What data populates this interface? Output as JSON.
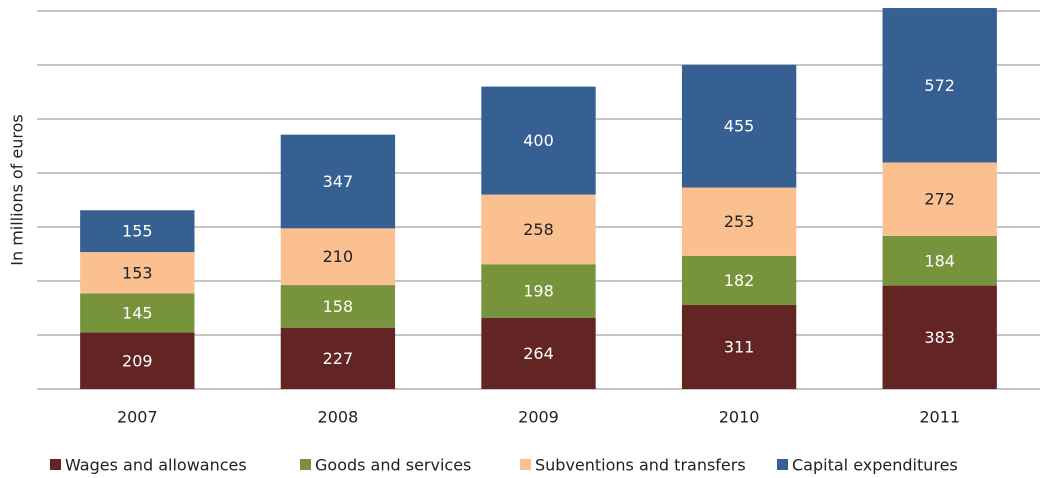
{
  "chart_data": {
    "type": "stacked_bar",
    "y_label": "In millions of euros",
    "categories": [
      "2007",
      "2008",
      "2009",
      "2010",
      "2011"
    ],
    "series": [
      {
        "name": "Wages and allowances",
        "color": "#632523",
        "values": [
          209,
          227,
          264,
          311,
          383
        ]
      },
      {
        "name": "Goods and services",
        "color": "#77933c",
        "values": [
          145,
          158,
          198,
          182,
          184
        ]
      },
      {
        "name": "Subventions and transfers",
        "color": "#fac090",
        "values": [
          153,
          210,
          258,
          253,
          272
        ]
      },
      {
        "name": "Capital expenditures",
        "color": "#376092",
        "values": [
          155,
          347,
          400,
          455,
          572
        ]
      }
    ],
    "ylim": [
      0,
      1400
    ],
    "yticks": [
      0,
      200,
      400,
      600,
      800,
      1000,
      1200,
      1400
    ],
    "grid": true
  }
}
